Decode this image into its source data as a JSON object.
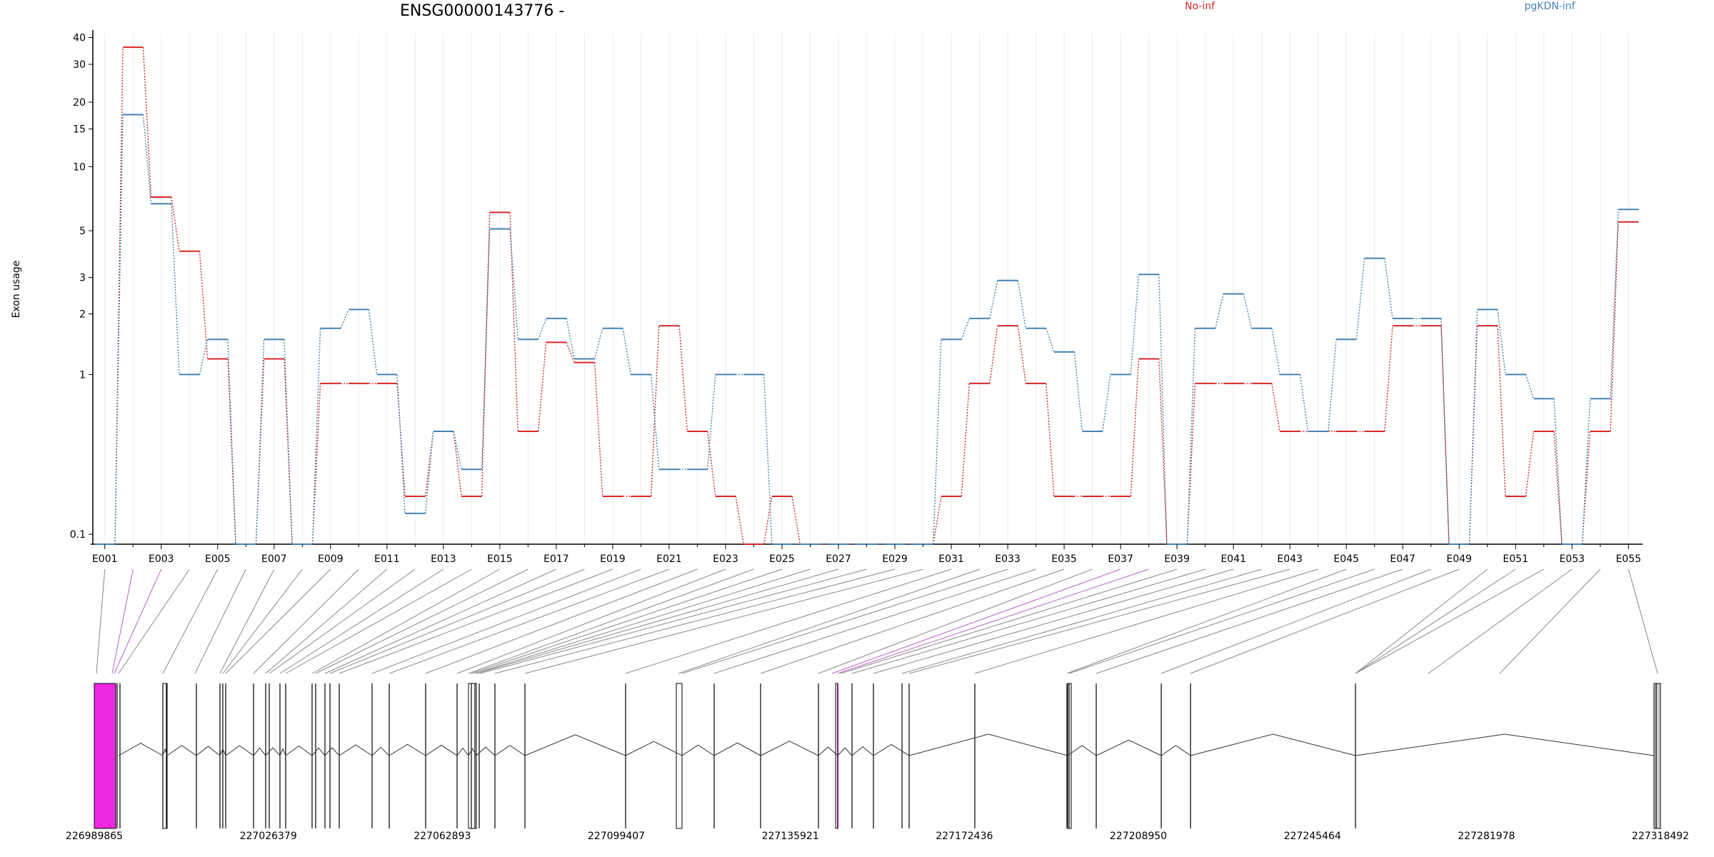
{
  "title": "ENSG00000143776 -",
  "ylabel": "Exon usage",
  "legend": [
    {
      "name": "No-inf",
      "color": "#d62728"
    },
    {
      "name": "pgKDN-inf",
      "color": "#4682b4"
    }
  ],
  "chart_data": {
    "type": "line",
    "title": "ENSG00000143776 -",
    "ylabel": "Exon usage",
    "yscale": "log(x+0.1)",
    "ylim": [
      0.08,
      42
    ],
    "yticks": [
      0.1,
      1,
      2,
      3,
      5,
      10,
      15,
      20,
      30,
      40
    ],
    "grid": "vertical",
    "legend_position": "top",
    "categories": [
      "E001",
      "E002",
      "E003",
      "E004",
      "E005",
      "E006",
      "E007",
      "E008",
      "E009",
      "E010",
      "E011",
      "E012",
      "E013",
      "E014",
      "E015",
      "E016",
      "E017",
      "E018",
      "E019",
      "E020",
      "E021",
      "E022",
      "E023",
      "E024",
      "E025",
      "E026",
      "E027",
      "E028",
      "E029",
      "E030",
      "E031",
      "E032",
      "E033",
      "E034",
      "E035",
      "E036",
      "E037",
      "E038",
      "E039",
      "E040",
      "E041",
      "E042",
      "E043",
      "E044",
      "E045",
      "E046",
      "E047",
      "E048",
      "E049",
      "E050",
      "E051",
      "E052",
      "E053",
      "E054",
      "E055"
    ],
    "xtick_labels": [
      "E001",
      "E003",
      "E005",
      "E007",
      "E009",
      "E011",
      "E013",
      "E015",
      "E017",
      "E019",
      "E021",
      "E023",
      "E025",
      "E027",
      "E029",
      "E031",
      "E033",
      "E035",
      "E037",
      "E039",
      "E041",
      "E043",
      "E045",
      "E047",
      "E049",
      "E051",
      "E053",
      "E055"
    ],
    "series": [
      {
        "name": "No-inf",
        "color": "#d62728",
        "values": [
          0.08,
          36,
          7.2,
          4.0,
          1.2,
          0.08,
          1.2,
          0.08,
          0.9,
          0.9,
          0.9,
          0.2,
          0.5,
          0.2,
          6.1,
          0.5,
          1.45,
          1.15,
          0.2,
          0.2,
          1.75,
          0.5,
          0.2,
          0.08,
          0.2,
          0.08,
          0.08,
          0.08,
          0.08,
          0.08,
          0.2,
          0.9,
          1.75,
          0.9,
          0.2,
          0.2,
          0.2,
          1.2,
          0.08,
          0.9,
          0.9,
          0.9,
          0.5,
          0.5,
          0.5,
          0.5,
          1.75,
          1.75,
          0.08,
          1.75,
          0.2,
          0.5,
          0.08,
          0.5,
          5.5
        ]
      },
      {
        "name": "pgKDN-inf",
        "color": "#4682b4",
        "values": [
          0.08,
          17.5,
          6.7,
          1.0,
          1.5,
          0.08,
          1.5,
          0.08,
          1.7,
          2.1,
          1.0,
          0.15,
          0.5,
          0.3,
          5.1,
          1.5,
          1.9,
          1.2,
          1.7,
          1.0,
          0.3,
          0.3,
          1.0,
          1.0,
          0.08,
          0.08,
          0.08,
          0.08,
          0.08,
          0.08,
          1.5,
          1.9,
          2.9,
          1.7,
          1.3,
          0.5,
          1.0,
          3.1,
          0.08,
          1.7,
          2.5,
          1.7,
          1.0,
          0.5,
          1.5,
          3.7,
          1.9,
          1.9,
          0.08,
          2.1,
          1.0,
          0.75,
          0.08,
          0.75,
          6.3
        ]
      }
    ],
    "genomic_axis": {
      "tick_labels": [
        "226989865",
        "227026379",
        "227062893",
        "227099407",
        "227135921",
        "227172436",
        "227208950",
        "227245464",
        "227281978",
        "227318492"
      ],
      "range": [
        226989865,
        227318492
      ]
    }
  }
}
